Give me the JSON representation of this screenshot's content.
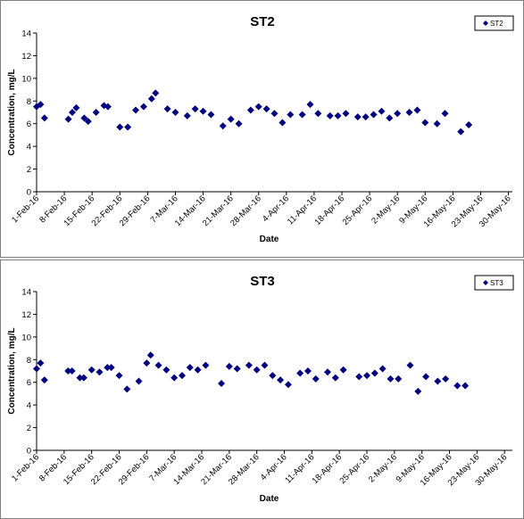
{
  "chart_data": [
    {
      "type": "scatter",
      "title": "ST2",
      "xlabel": "Date",
      "ylabel": "Concentration, mg/L",
      "xlim": [
        "2016-02-01",
        "2016-05-31"
      ],
      "ylim": [
        0,
        14
      ],
      "yticks": [
        0,
        2,
        4,
        6,
        8,
        10,
        12,
        14
      ],
      "xticks": [
        "1-Feb-16",
        "8-Feb-16",
        "15-Feb-16",
        "22-Feb-16",
        "29-Feb-16",
        "7-Mar-16",
        "14-Mar-16",
        "21-Mar-16",
        "28-Mar-16",
        "4-Apr-16",
        "11-Apr-16",
        "18-Apr-16",
        "25-Apr-16",
        "2-May-16",
        "9-May-16",
        "16-May-16",
        "23-May-16",
        "30-May-16"
      ],
      "legend": "top-right",
      "grid": false,
      "series": [
        {
          "name": "ST2",
          "color": "#000080",
          "marker": "diamond",
          "points": [
            [
              "2016-02-01",
              7.5
            ],
            [
              "2016-02-02",
              7.7
            ],
            [
              "2016-02-03",
              6.5
            ],
            [
              "2016-02-09",
              6.4
            ],
            [
              "2016-02-10",
              7.0
            ],
            [
              "2016-02-11",
              7.4
            ],
            [
              "2016-02-13",
              6.5
            ],
            [
              "2016-02-14",
              6.2
            ],
            [
              "2016-02-16",
              7.0
            ],
            [
              "2016-02-18",
              7.6
            ],
            [
              "2016-02-19",
              7.5
            ],
            [
              "2016-02-22",
              5.7
            ],
            [
              "2016-02-24",
              5.7
            ],
            [
              "2016-02-26",
              7.2
            ],
            [
              "2016-02-28",
              7.5
            ],
            [
              "2016-03-01",
              8.2
            ],
            [
              "2016-03-02",
              8.7
            ],
            [
              "2016-03-05",
              7.3
            ],
            [
              "2016-03-07",
              7.0
            ],
            [
              "2016-03-10",
              6.7
            ],
            [
              "2016-03-12",
              7.3
            ],
            [
              "2016-03-14",
              7.1
            ],
            [
              "2016-03-16",
              6.8
            ],
            [
              "2016-03-19",
              5.8
            ],
            [
              "2016-03-21",
              6.4
            ],
            [
              "2016-03-23",
              6.0
            ],
            [
              "2016-03-26",
              7.2
            ],
            [
              "2016-03-28",
              7.5
            ],
            [
              "2016-03-30",
              7.3
            ],
            [
              "2016-04-01",
              6.9
            ],
            [
              "2016-04-03",
              6.1
            ],
            [
              "2016-04-05",
              6.8
            ],
            [
              "2016-04-08",
              6.8
            ],
            [
              "2016-04-10",
              7.7
            ],
            [
              "2016-04-12",
              6.9
            ],
            [
              "2016-04-15",
              6.7
            ],
            [
              "2016-04-17",
              6.7
            ],
            [
              "2016-04-19",
              6.9
            ],
            [
              "2016-04-22",
              6.6
            ],
            [
              "2016-04-24",
              6.6
            ],
            [
              "2016-04-26",
              6.8
            ],
            [
              "2016-04-28",
              7.1
            ],
            [
              "2016-04-30",
              6.5
            ],
            [
              "2016-05-02",
              6.9
            ],
            [
              "2016-05-05",
              7.0
            ],
            [
              "2016-05-07",
              7.2
            ],
            [
              "2016-05-09",
              6.1
            ],
            [
              "2016-05-12",
              6.0
            ],
            [
              "2016-05-14",
              6.9
            ],
            [
              "2016-05-18",
              5.3
            ],
            [
              "2016-05-20",
              5.9
            ]
          ]
        }
      ]
    },
    {
      "type": "scatter",
      "title": "ST3",
      "xlabel": "Date",
      "ylabel": "Concentration, mg/L",
      "xlim": [
        "2016-02-01",
        "2016-06-01"
      ],
      "ylim": [
        0,
        14
      ],
      "yticks": [
        0,
        2,
        4,
        6,
        8,
        10,
        12,
        14
      ],
      "xticks": [
        "1-Feb-16",
        "8-Feb-16",
        "15-Feb-16",
        "22-Feb-16",
        "29-Feb-16",
        "7-Mar-16",
        "14-Mar-16",
        "21-Mar-16",
        "28-Mar-16",
        "4-Apr-16",
        "11-Apr-16",
        "18-Apr-16",
        "25-Apr-16",
        "2-May-16",
        "9-May-16",
        "16-May-16",
        "23-May-16",
        "30-May-16"
      ],
      "legend": "top-right",
      "grid": false,
      "series": [
        {
          "name": "ST3",
          "color": "#000080",
          "marker": "diamond",
          "points": [
            [
              "2016-02-01",
              7.2
            ],
            [
              "2016-02-02",
              7.7
            ],
            [
              "2016-02-03",
              6.2
            ],
            [
              "2016-02-09",
              7.0
            ],
            [
              "2016-02-10",
              7.0
            ],
            [
              "2016-02-12",
              6.4
            ],
            [
              "2016-02-13",
              6.4
            ],
            [
              "2016-02-15",
              7.1
            ],
            [
              "2016-02-17",
              6.9
            ],
            [
              "2016-02-19",
              7.3
            ],
            [
              "2016-02-20",
              7.3
            ],
            [
              "2016-02-22",
              6.6
            ],
            [
              "2016-02-24",
              5.4
            ],
            [
              "2016-02-27",
              6.1
            ],
            [
              "2016-02-29",
              7.7
            ],
            [
              "2016-03-01",
              8.4
            ],
            [
              "2016-03-03",
              7.5
            ],
            [
              "2016-03-05",
              7.1
            ],
            [
              "2016-03-07",
              6.4
            ],
            [
              "2016-03-09",
              6.6
            ],
            [
              "2016-03-11",
              7.3
            ],
            [
              "2016-03-13",
              7.1
            ],
            [
              "2016-03-15",
              7.5
            ],
            [
              "2016-03-19",
              5.9
            ],
            [
              "2016-03-21",
              7.4
            ],
            [
              "2016-03-23",
              7.2
            ],
            [
              "2016-03-26",
              7.5
            ],
            [
              "2016-03-28",
              7.1
            ],
            [
              "2016-03-30",
              7.5
            ],
            [
              "2016-04-01",
              6.6
            ],
            [
              "2016-04-03",
              6.2
            ],
            [
              "2016-04-05",
              5.8
            ],
            [
              "2016-04-08",
              6.8
            ],
            [
              "2016-04-10",
              7.0
            ],
            [
              "2016-04-12",
              6.3
            ],
            [
              "2016-04-15",
              6.9
            ],
            [
              "2016-04-17",
              6.4
            ],
            [
              "2016-04-19",
              7.1
            ],
            [
              "2016-04-23",
              6.5
            ],
            [
              "2016-04-25",
              6.6
            ],
            [
              "2016-04-27",
              6.8
            ],
            [
              "2016-04-29",
              7.2
            ],
            [
              "2016-05-01",
              6.3
            ],
            [
              "2016-05-03",
              6.3
            ],
            [
              "2016-05-06",
              7.5
            ],
            [
              "2016-05-08",
              5.2
            ],
            [
              "2016-05-10",
              6.5
            ],
            [
              "2016-05-13",
              6.1
            ],
            [
              "2016-05-15",
              6.3
            ],
            [
              "2016-05-18",
              5.7
            ],
            [
              "2016-05-20",
              5.7
            ]
          ]
        }
      ]
    }
  ]
}
